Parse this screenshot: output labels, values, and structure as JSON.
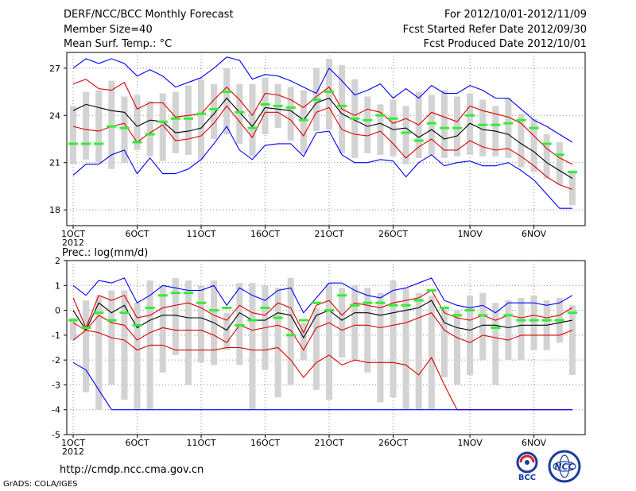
{
  "header": {
    "title": "DERF/NCC/BCC Monthly Forecast",
    "member_size": "Member Size=40",
    "period": "For 2012/10/01-2012/11/09",
    "started": "Fcst Started Refer Date 2012/09/30",
    "produced": "Fcst Produced Date 2012/10/01"
  },
  "footer": {
    "url": "http://cmdp.ncc.cma.gov.cn",
    "grads": "GrADS: COLA/IGES",
    "logo_bcc": "BCC",
    "logo_ncc": "NCC"
  },
  "colors": {
    "max": "#0000ff",
    "spread": "#dd0000",
    "mean": "#000000",
    "box": "#d3d3d3",
    "obs": "#33ee33"
  },
  "chart_data": [
    {
      "type": "line",
      "title": "Mean Surf. Temp.: °C",
      "x_days": 40,
      "xtick_labels": [
        "1OCT",
        "6OCT",
        "11OCT",
        "16OCT",
        "21OCT",
        "26OCT",
        "1NOV",
        "6NOV"
      ],
      "xtick_days": [
        1,
        6,
        11,
        16,
        21,
        26,
        32,
        37
      ],
      "xsub": "2012",
      "ylim": [
        17,
        28
      ],
      "yticks": [
        18,
        21,
        24,
        27
      ],
      "series": [
        {
          "name": "max",
          "values": [
            27.0,
            27.6,
            27.3,
            27.6,
            27.3,
            26.5,
            26.9,
            26.5,
            25.8,
            26.1,
            26.4,
            27.0,
            27.7,
            27.5,
            26.3,
            26.6,
            26.5,
            26.2,
            25.8,
            25.4,
            27.0,
            26.2,
            25.3,
            25.6,
            26.0,
            25.1,
            25.7,
            25.1,
            25.9,
            25.4,
            25.4,
            25.9,
            25.6,
            25.1,
            25.1,
            24.4,
            23.7,
            23.3,
            22.8,
            22.3
          ]
        },
        {
          "name": "upper",
          "values": [
            26.0,
            26.3,
            25.7,
            25.6,
            26.1,
            24.4,
            24.8,
            24.8,
            23.9,
            24.0,
            24.1,
            25.0,
            25.8,
            25.0,
            24.0,
            25.4,
            25.3,
            25.0,
            24.5,
            25.2,
            25.8,
            24.4,
            24.0,
            24.4,
            24.2,
            23.5,
            23.8,
            23.4,
            24.2,
            23.9,
            23.6,
            24.6,
            24.3,
            24.1,
            23.9,
            23.5,
            22.7,
            21.9,
            21.3,
            20.9
          ]
        },
        {
          "name": "mean",
          "values": [
            24.3,
            24.7,
            24.5,
            24.3,
            24.2,
            23.3,
            23.7,
            23.6,
            22.9,
            23.0,
            23.2,
            24.1,
            25.1,
            24.2,
            23.3,
            24.5,
            24.4,
            24.3,
            23.7,
            24.8,
            25.1,
            24.1,
            23.7,
            23.3,
            23.5,
            23.1,
            23.2,
            22.6,
            23.1,
            22.5,
            22.7,
            23.5,
            23.1,
            23.0,
            22.8,
            22.2,
            21.7,
            21.0,
            20.5,
            20.0
          ]
        },
        {
          "name": "lower",
          "values": [
            23.3,
            23.1,
            23.0,
            23.3,
            23.5,
            22.3,
            22.9,
            23.4,
            22.4,
            22.5,
            22.7,
            23.5,
            24.6,
            23.6,
            22.6,
            24.2,
            24.2,
            23.7,
            22.7,
            24.2,
            24.5,
            23.1,
            22.8,
            22.7,
            23.0,
            22.2,
            21.3,
            22.0,
            22.5,
            21.8,
            21.8,
            22.4,
            22.0,
            21.8,
            21.9,
            21.4,
            20.8,
            20.1,
            19.6,
            19.3
          ]
        },
        {
          "name": "min",
          "values": [
            20.2,
            20.9,
            20.9,
            21.5,
            21.8,
            20.3,
            21.3,
            20.3,
            20.3,
            20.6,
            21.2,
            22.2,
            23.3,
            21.8,
            21.2,
            22.1,
            22.2,
            22.2,
            21.4,
            22.9,
            23.0,
            21.5,
            21.0,
            21.0,
            21.2,
            21.1,
            20.1,
            21.0,
            21.5,
            20.8,
            21.0,
            21.1,
            20.8,
            20.8,
            21.0,
            20.5,
            19.9,
            19.0,
            18.1,
            18.1
          ]
        }
      ],
      "box_low": [
        20.9,
        21.2,
        21.0,
        20.6,
        21.0,
        21.8,
        21.4,
        21.1,
        21.6,
        21.5,
        21.2,
        22.5,
        22.8,
        22.2,
        21.4,
        22.8,
        23.2,
        22.4,
        21.6,
        23.0,
        23.1,
        21.6,
        21.3,
        21.6,
        21.5,
        21.4,
        20.9,
        21.3,
        21.5,
        21.3,
        21.4,
        21.5,
        21.4,
        21.4,
        21.3,
        20.7,
        20.4,
        20.0,
        19.6,
        18.3
      ],
      "box_high": [
        24.6,
        25.5,
        25.6,
        26.2,
        25.2,
        25.3,
        24.9,
        25.4,
        25.5,
        25.9,
        26.3,
        26.0,
        27.0,
        26.0,
        26.0,
        26.4,
        26.0,
        25.8,
        25.6,
        27.0,
        27.6,
        27.2,
        26.3,
        25.2,
        24.7,
        25.0,
        24.6,
        25.5,
        25.3,
        25.6,
        25.2,
        25.4,
        25.0,
        24.6,
        25.1,
        24.1,
        23.8,
        22.8,
        22.3,
        20.5
      ],
      "obs": [
        22.2,
        22.2,
        22.2,
        23.3,
        23.2,
        22.3,
        22.8,
        23.6,
        23.8,
        23.8,
        24.1,
        24.4,
        25.5,
        24.2,
        23.2,
        24.7,
        24.6,
        24.5,
        23.7,
        25.0,
        25.5,
        24.6,
        23.8,
        23.7,
        24.0,
        23.8,
        22.9,
        22.4,
        23.5,
        23.2,
        23.2,
        24.0,
        23.4,
        23.4,
        23.5,
        23.7,
        23.2,
        22.2,
        21.5,
        20.4
      ]
    },
    {
      "type": "line",
      "title": "Prec.: log(mm/d)",
      "x_days": 40,
      "xtick_labels": [
        "1OCT",
        "6OCT",
        "11OCT",
        "16OCT",
        "21OCT",
        "26OCT",
        "1NOV",
        "6NOV"
      ],
      "xtick_days": [
        1,
        6,
        11,
        16,
        21,
        26,
        32,
        37
      ],
      "xsub": "2012",
      "ylim": [
        -5,
        2
      ],
      "yticks": [
        -5,
        -4,
        -3,
        -2,
        -1,
        0,
        1,
        2
      ],
      "series": [
        {
          "name": "max",
          "values": [
            1.0,
            0.6,
            1.2,
            1.1,
            1.3,
            0.3,
            0.6,
            1.0,
            0.9,
            0.8,
            0.8,
            1.0,
            0.2,
            0.9,
            0.6,
            0.4,
            0.8,
            0.9,
            -0.1,
            0.5,
            1.1,
            1.1,
            0.8,
            0.6,
            0.5,
            0.8,
            0.9,
            1.1,
            1.3,
            0.4,
            0.2,
            0.1,
            0.2,
            -0.1,
            0.3,
            0.3,
            0.3,
            0.2,
            0.3,
            0.6
          ]
        },
        {
          "name": "upper",
          "values": [
            0.5,
            -0.7,
            0.6,
            0.4,
            0.6,
            -0.3,
            -0.2,
            0.1,
            0.2,
            0.3,
            0.1,
            -0.2,
            -0.4,
            0.2,
            -0.1,
            -0.2,
            0.3,
            0.1,
            -0.9,
            0.2,
            0.4,
            -0.2,
            0.3,
            0.2,
            0.1,
            0.3,
            0.4,
            0.5,
            0.8,
            -0.1,
            -0.3,
            -0.4,
            -0.2,
            -0.4,
            -0.2,
            -0.3,
            -0.2,
            -0.3,
            -0.2,
            0.1
          ]
        },
        {
          "name": "mean",
          "values": [
            0.0,
            -0.8,
            0.3,
            -0.1,
            0.2,
            -0.7,
            -0.4,
            -0.2,
            -0.2,
            -0.3,
            -0.3,
            -0.5,
            -0.8,
            -0.1,
            -0.4,
            -0.4,
            -0.1,
            -0.2,
            -1.1,
            -0.2,
            0.0,
            -0.4,
            -0.1,
            -0.1,
            -0.2,
            -0.1,
            0.0,
            0.1,
            0.4,
            -0.5,
            -0.7,
            -0.8,
            -0.6,
            -0.6,
            -0.7,
            -0.6,
            -0.6,
            -0.6,
            -0.5,
            -0.4
          ]
        },
        {
          "name": "lower",
          "values": [
            -0.5,
            -0.8,
            -0.2,
            -0.5,
            -0.6,
            -1.2,
            -0.9,
            -0.7,
            -0.8,
            -0.8,
            -0.8,
            -1.0,
            -1.3,
            -0.6,
            -0.8,
            -0.7,
            -0.6,
            -0.8,
            -1.6,
            -0.7,
            -0.5,
            -0.8,
            -0.6,
            -0.6,
            -0.7,
            -0.6,
            -0.5,
            -0.3,
            -0.1,
            -0.8,
            -1.1,
            -1.3,
            -1.0,
            -1.1,
            -1.2,
            -1.0,
            -1.0,
            -1.0,
            -1.0,
            -0.8
          ]
        },
        {
          "name": "min_red",
          "values": [
            -1.2,
            -0.8,
            -0.9,
            -1.1,
            -1.2,
            -1.6,
            -1.4,
            -1.4,
            -1.6,
            -1.6,
            -1.6,
            -1.6,
            -1.5,
            -1.5,
            -1.6,
            -1.6,
            -1.5,
            -2.0,
            -2.7,
            -2.1,
            -1.8,
            -2.2,
            -2.0,
            -2.1,
            -2.1,
            -2.1,
            -2.2,
            -2.6,
            -1.9,
            -3.0,
            -4.0,
            -4.0,
            -4.0,
            -4.0,
            -4.0,
            -4.0,
            -4.0,
            -4.0,
            -4.0,
            -4.0
          ]
        },
        {
          "name": "min_blue",
          "values": [
            -2.1,
            -2.4,
            -3.2,
            -4.0,
            -4.0,
            -4.0,
            -4.0,
            -4.0,
            -4.0,
            -4.0,
            -4.0,
            -4.0,
            -4.0,
            -4.0,
            -4.0,
            -4.0,
            -4.0,
            -4.0,
            -4.0,
            -4.0,
            -4.0,
            -4.0,
            -4.0,
            -4.0,
            -4.0,
            -4.0,
            -4.0,
            -4.0,
            -4.0,
            -4.0,
            -4.0,
            -4.0,
            -4.0,
            -4.0,
            -4.0,
            -4.0,
            -4.0,
            -4.0,
            -4.0,
            -4.0
          ]
        }
      ],
      "box_low": [
        -1.2,
        -3.3,
        -4.0,
        -3.0,
        -3.6,
        -4.0,
        -4.0,
        -2.5,
        -1.8,
        -3.0,
        -2.1,
        -2.2,
        -1.6,
        -2.2,
        -4.0,
        -2.4,
        -3.5,
        -3.0,
        -2.0,
        -3.2,
        -3.6,
        -1.9,
        -2.0,
        -2.5,
        -3.7,
        -3.5,
        -4.0,
        -4.0,
        -4.0,
        -2.7,
        -3.0,
        -2.6,
        -2.0,
        -3.0,
        -2.0,
        -2.0,
        -1.6,
        -1.6,
        -1.3,
        -2.6
      ],
      "box_high": [
        -0.3,
        0.4,
        0.6,
        0.8,
        0.8,
        0.3,
        1.2,
        1.0,
        1.3,
        1.2,
        1.0,
        1.2,
        -0.1,
        1.1,
        1.1,
        1.0,
        0.9,
        1.3,
        -0.5,
        0.1,
        1.1,
        0.9,
        1.0,
        0.9,
        0.7,
        1.2,
        0.9,
        0.7,
        0.6,
        0.1,
        0.0,
        0.6,
        0.7,
        0.3,
        0.4,
        0.5,
        0.6,
        0.4,
        0.5,
        0.2
      ],
      "obs": [
        -0.4,
        -0.7,
        -0.1,
        -0.4,
        -0.1,
        -0.6,
        0.1,
        0.6,
        0.7,
        0.7,
        0.3,
        0.0,
        0.1,
        -0.6,
        -0.4,
        0.1,
        -0.3,
        -1.0,
        -0.4,
        0.3,
        0.0,
        0.6,
        0.2,
        0.3,
        0.3,
        0.2,
        0.2,
        0.4,
        0.8,
        0.1,
        -0.2,
        0.0,
        -0.2,
        -0.7,
        -0.2,
        -0.4,
        -0.4,
        -0.4,
        -0.4,
        -0.1
      ]
    }
  ]
}
